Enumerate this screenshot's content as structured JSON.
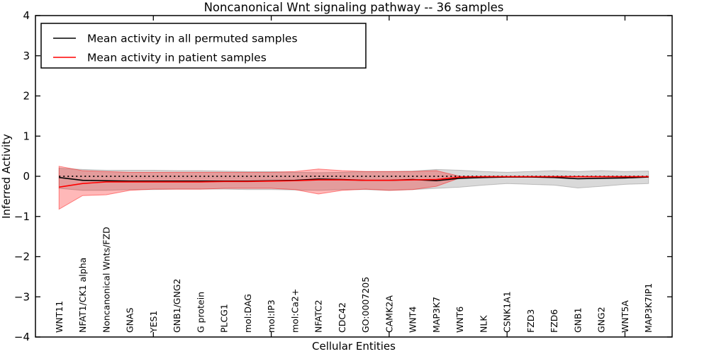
{
  "title": "Noncanonical Wnt signaling pathway -- 36 samples",
  "axes": {
    "xlabel": "Cellular Entities",
    "ylabel": "Inferred Activity"
  },
  "legend": {
    "entries": [
      {
        "label": "Mean activity in all permuted samples",
        "color": "#000000"
      },
      {
        "label": "Mean activity in patient samples",
        "color": "#ff0000"
      }
    ]
  },
  "chart_data": {
    "type": "line",
    "title": "Noncanonical Wnt signaling pathway -- 36 samples",
    "xlabel": "Cellular Entities",
    "ylabel": "Inferred Activity",
    "ylim": [
      -4,
      4
    ],
    "xlim": [
      0,
      27
    ],
    "grid": false,
    "legend_position": "upper left",
    "ytick_values": [
      -4,
      -3,
      -2,
      -1,
      0,
      1,
      2,
      3,
      4
    ],
    "ytick_labels": [
      "−4",
      "−3",
      "−2",
      "−1",
      "0",
      "1",
      "2",
      "3",
      "4"
    ],
    "xtick_values": [
      5,
      10,
      15,
      20,
      25
    ],
    "categories": [
      "WNT11",
      "NFAT1/CK1 alpha",
      "Noncanonical Wnts/FZD",
      "GNAS",
      "YES1",
      "GNB1/GNG2",
      "G protein",
      "PLCG1",
      "mol:DAG",
      "mol:IP3",
      "mol:Ca2+",
      "NFATC2",
      "CDC42",
      "GO:0007205",
      "CAMK2A",
      "WNT4",
      "MAP3K7",
      "WNT6",
      "NLK",
      "CSNK1A1",
      "FZD3",
      "FZD6",
      "GNB1",
      "GNG2",
      "WNT5A",
      "MAP3K7IP1"
    ],
    "zero_line": {
      "y": 0,
      "style": "dotted",
      "color": "#000000"
    },
    "series": [
      {
        "name": "Mean activity in all permuted samples",
        "color": "#000000",
        "values": [
          -0.03,
          -0.1,
          -0.11,
          -0.12,
          -0.12,
          -0.12,
          -0.12,
          -0.12,
          -0.12,
          -0.11,
          -0.1,
          -0.07,
          -0.08,
          -0.1,
          -0.1,
          -0.08,
          -0.11,
          -0.05,
          -0.03,
          -0.02,
          -0.02,
          -0.03,
          -0.06,
          -0.05,
          -0.04,
          -0.02
        ]
      },
      {
        "name": "Mean activity in patient samples",
        "color": "#ff0000",
        "values": [
          -0.27,
          -0.18,
          -0.14,
          -0.14,
          -0.14,
          -0.14,
          -0.14,
          -0.13,
          -0.13,
          -0.12,
          -0.11,
          -0.09,
          -0.09,
          -0.1,
          -0.1,
          -0.09,
          -0.08,
          -0.02,
          -0.01,
          -0.01,
          -0.01,
          -0.01,
          -0.01,
          -0.01,
          -0.01,
          -0.01
        ]
      }
    ],
    "bands": [
      {
        "name": "permuted-samples-range",
        "fill": "rgba(128,128,128,0.30)",
        "edge": "rgba(128,128,128,0.45)",
        "upper": [
          0.2,
          0.17,
          0.15,
          0.15,
          0.15,
          0.14,
          0.14,
          0.13,
          0.12,
          0.12,
          0.1,
          0.09,
          0.1,
          0.12,
          0.12,
          0.13,
          0.17,
          0.15,
          0.12,
          0.1,
          0.12,
          0.14,
          0.12,
          0.14,
          0.12,
          0.13
        ],
        "lower": [
          -0.3,
          -0.35,
          -0.35,
          -0.33,
          -0.33,
          -0.32,
          -0.32,
          -0.32,
          -0.33,
          -0.33,
          -0.34,
          -0.35,
          -0.33,
          -0.33,
          -0.35,
          -0.33,
          -0.3,
          -0.27,
          -0.22,
          -0.18,
          -0.2,
          -0.22,
          -0.29,
          -0.25,
          -0.2,
          -0.18
        ]
      },
      {
        "name": "patient-samples-range",
        "fill": "rgba(255,0,0,0.28)",
        "edge": "rgba(255,0,0,0.45)",
        "upper": [
          0.25,
          0.14,
          0.12,
          0.1,
          0.1,
          0.1,
          0.1,
          0.1,
          0.1,
          0.1,
          0.12,
          0.18,
          0.14,
          0.12,
          0.12,
          0.12,
          0.14,
          0.0,
          -0.005,
          -0.005,
          -0.005,
          -0.005,
          -0.005,
          -0.005,
          -0.005,
          0.0
        ],
        "lower": [
          -0.82,
          -0.48,
          -0.46,
          -0.35,
          -0.32,
          -0.32,
          -0.32,
          -0.3,
          -0.3,
          -0.3,
          -0.33,
          -0.44,
          -0.35,
          -0.32,
          -0.35,
          -0.33,
          -0.25,
          -0.04,
          -0.02,
          -0.02,
          -0.02,
          -0.02,
          -0.02,
          -0.02,
          -0.02,
          -0.02
        ]
      }
    ]
  }
}
